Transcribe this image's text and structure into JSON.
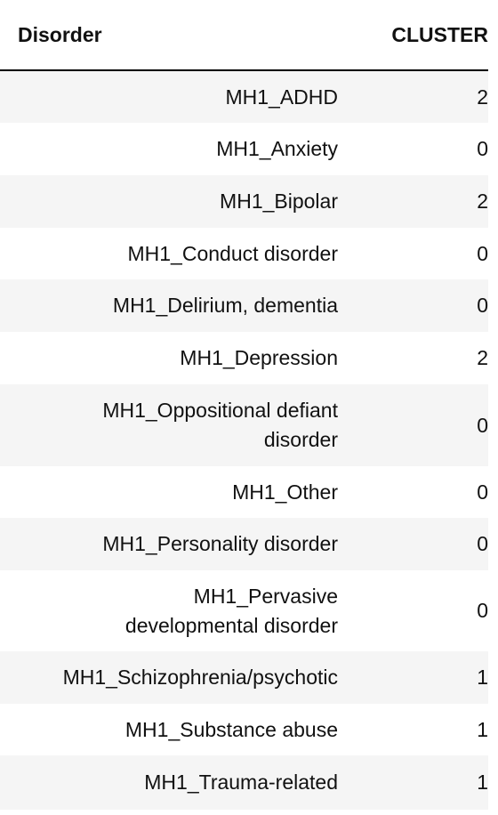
{
  "table": {
    "headers": {
      "disorder": "Disorder",
      "cluster": "CLUSTER"
    },
    "rows": [
      {
        "disorder": "MH1_ADHD",
        "cluster": "2"
      },
      {
        "disorder": "MH1_Anxiety",
        "cluster": "0"
      },
      {
        "disorder": "MH1_Bipolar",
        "cluster": "2"
      },
      {
        "disorder": "MH1_Conduct disorder",
        "cluster": "0"
      },
      {
        "disorder": "MH1_Delirium, dementia",
        "cluster": "0"
      },
      {
        "disorder": "MH1_Depression",
        "cluster": "2"
      },
      {
        "disorder": "MH1_Oppositional defiant disorder",
        "cluster": "0"
      },
      {
        "disorder": "MH1_Other",
        "cluster": "0"
      },
      {
        "disorder": "MH1_Personality disorder",
        "cluster": "0"
      },
      {
        "disorder": "MH1_Pervasive developmental disorder",
        "cluster": "0"
      },
      {
        "disorder": "MH1_Schizophrenia/psychotic",
        "cluster": "1"
      },
      {
        "disorder": "MH1_Substance abuse",
        "cluster": "1"
      },
      {
        "disorder": "MH1_Trauma-related",
        "cluster": "1"
      }
    ]
  },
  "colors": {
    "stripe": "#f5f5f5",
    "header_rule": "#000000",
    "text": "#111111"
  }
}
